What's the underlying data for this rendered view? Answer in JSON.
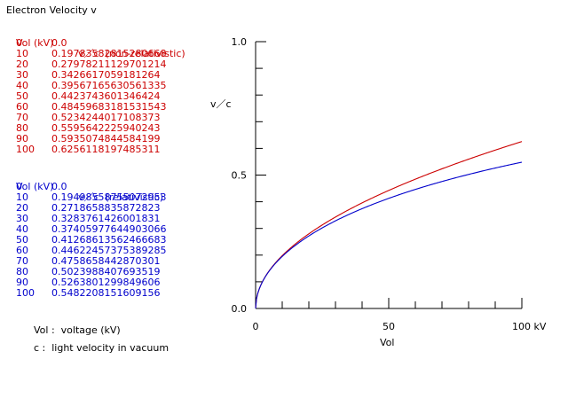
{
  "title": "Electron Velocity  v",
  "colors": {
    "nonrel": "#cc0000",
    "rel": "#0000cc"
  },
  "nonrel_table": {
    "header_vol": "Vol (kV)",
    "header_v": "v／c  (non-relativistic)",
    "rows": [
      [
        "0",
        "0.0"
      ],
      [
        "10",
        "0.19783582815280668"
      ],
      [
        "20",
        "0.27978211129701214"
      ],
      [
        "30",
        "0.3426617059181264"
      ],
      [
        "40",
        "0.39567165630561335"
      ],
      [
        "50",
        "0.4423743601346424"
      ],
      [
        "60",
        "0.48459683181531543"
      ],
      [
        "70",
        "0.5234244017108373"
      ],
      [
        "80",
        "0.5595642225940243"
      ],
      [
        "90",
        "0.5935074844584199"
      ],
      [
        "100",
        "0.6256118197485311"
      ]
    ]
  },
  "rel_table": {
    "header_vol": "Vol (kV)",
    "header_v": "v／c  (relativistic)",
    "rows": [
      [
        "0",
        "0.0"
      ],
      [
        "10",
        "0.19498558755072953"
      ],
      [
        "20",
        "0.2718658835872823"
      ],
      [
        "30",
        "0.3283761426001831"
      ],
      [
        "40",
        "0.37405977644903066"
      ],
      [
        "50",
        "0.41268613562466683"
      ],
      [
        "60",
        "0.44622457375389285"
      ],
      [
        "70",
        "0.4758658442870301"
      ],
      [
        "80",
        "0.5023988407693519"
      ],
      [
        "90",
        "0.5263801299849606"
      ],
      [
        "100",
        "0.5482208151609156"
      ]
    ]
  },
  "notes": {
    "vol": "Vol :  voltage (kV)",
    "c": "c :  light velocity in vacuum"
  },
  "chart_data": {
    "type": "line",
    "xlabel": "Vol",
    "ylabel": "v／c",
    "xlim": [
      0,
      100
    ],
    "ylim": [
      0,
      1
    ],
    "x_ticks": [
      "0",
      "50",
      "100 kV"
    ],
    "y_ticks": [
      "0.0",
      "0.5",
      "1.0"
    ],
    "x": [
      0,
      10,
      20,
      30,
      40,
      50,
      60,
      70,
      80,
      90,
      100
    ],
    "series": [
      {
        "values": [
          0.0,
          0.19783582815280668,
          0.27978211129701214,
          0.3426617059181264,
          0.39567165630561335,
          0.4423743601346424,
          0.48459683181531543,
          0.5234244017108373,
          0.5595642225940243,
          0.5935074844584199,
          0.6256118197485311
        ],
        "color": "#cc0000"
      },
      {
        "values": [
          0.0,
          0.19498558755072953,
          0.2718658835872823,
          0.3283761426001831,
          0.37405977644903066,
          0.41268613562466683,
          0.44622457375389285,
          0.4758658442870301,
          0.5023988407693519,
          0.5263801299849606,
          0.5482208151609156
        ],
        "color": "#0000cc"
      }
    ]
  }
}
